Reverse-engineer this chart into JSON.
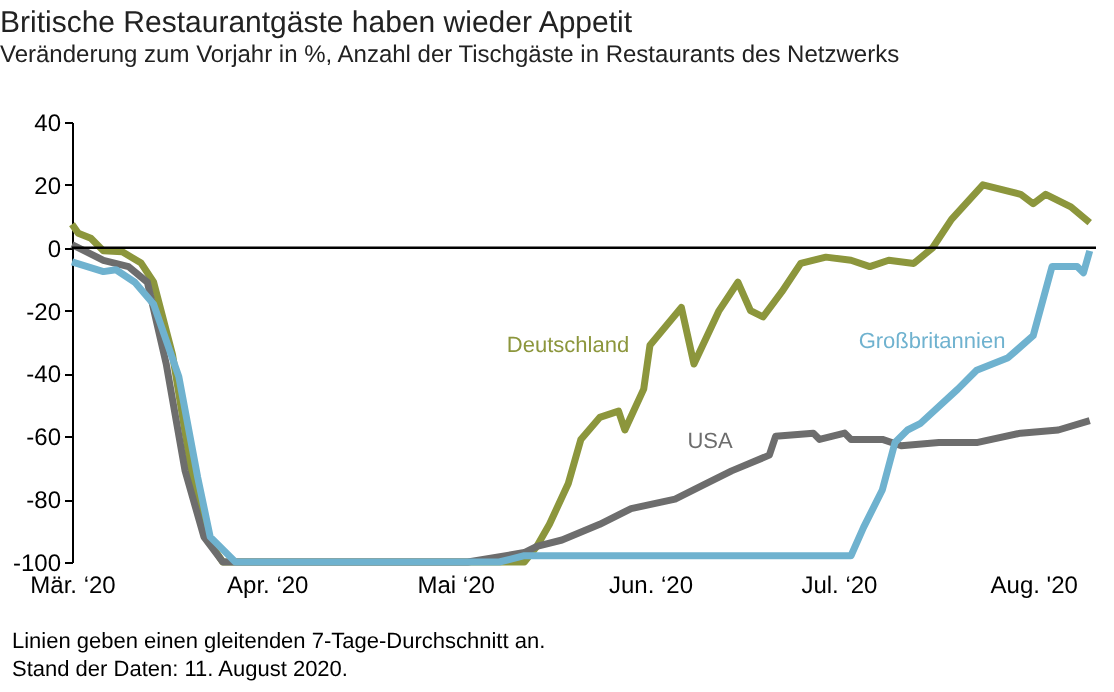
{
  "chart_data": {
    "type": "line",
    "title": "Britische Restaurantgäste haben wieder Appetit",
    "subtitle": "Veränderung zum Vorjahr in %, Anzahl der Tischgäste in Restaurants des Netzwerks",
    "annotations": [
      "Linien geben einen gleitenden 7-Tage-Durchschnitt an.",
      "Stand der Daten: 11. August 2020."
    ],
    "xlim": [
      "2020-03-01",
      "2020-08-11"
    ],
    "xticks": [
      {
        "value": "2020-03-01",
        "label": "Mär. ‘20"
      },
      {
        "value": "2020-04-01",
        "label": "Apr. ‘20"
      },
      {
        "value": "2020-05-01",
        "label": "Mai ‘20"
      },
      {
        "value": "2020-06-01",
        "label": "Jun. ‘20"
      },
      {
        "value": "2020-07-01",
        "label": "Jul. ‘20"
      },
      {
        "value": "2020-08-01",
        "label": "Aug. '20"
      }
    ],
    "ylim": [
      -100,
      40
    ],
    "yticks": [
      -100,
      -80,
      -60,
      -40,
      -20,
      0,
      20,
      40
    ],
    "grid": false,
    "legend": false,
    "marker": "none",
    "line_style": "solid",
    "ref_lines": [
      {
        "axis": "y",
        "value": 0,
        "color": "#000000"
      }
    ],
    "series": [
      {
        "name": "Deutschland",
        "color": "#8c963c",
        "x": [
          "2020-03-01",
          "2020-03-02",
          "2020-03-04",
          "2020-03-06",
          "2020-03-09",
          "2020-03-12",
          "2020-03-14",
          "2020-03-17",
          "2020-03-20",
          "2020-03-23",
          "2020-03-25",
          "2020-05-12",
          "2020-05-14",
          "2020-05-16",
          "2020-05-19",
          "2020-05-21",
          "2020-05-24",
          "2020-05-27",
          "2020-05-28",
          "2020-05-31",
          "2020-06-01",
          "2020-06-06",
          "2020-06-08",
          "2020-06-12",
          "2020-06-15",
          "2020-06-17",
          "2020-06-19",
          "2020-06-22",
          "2020-06-25",
          "2020-06-29",
          "2020-07-03",
          "2020-07-06",
          "2020-07-09",
          "2020-07-13",
          "2020-07-16",
          "2020-07-19",
          "2020-07-24",
          "2020-07-30",
          "2020-08-01",
          "2020-08-03",
          "2020-08-07",
          "2020-08-10"
        ],
        "values": [
          7.5,
          4.6,
          3,
          -1,
          -1.3,
          -4.9,
          -11,
          -34,
          -71,
          -94,
          -100,
          -100,
          -95,
          -88,
          -75,
          -61,
          -54,
          -52,
          -58,
          -45,
          -31,
          -19,
          -37,
          -20,
          -11,
          -20,
          -22,
          -14,
          -5,
          -3,
          -4,
          -6,
          -4,
          -5,
          0,
          9,
          20,
          17,
          14,
          17,
          13,
          8
        ]
      },
      {
        "name": "USA",
        "color": "#6d6d6d",
        "x": [
          "2020-03-01",
          "2020-03-06",
          "2020-03-10",
          "2020-03-13",
          "2020-03-16",
          "2020-03-19",
          "2020-03-22",
          "2020-03-25",
          "2020-05-03",
          "2020-05-12",
          "2020-05-14",
          "2020-05-18",
          "2020-05-24",
          "2020-05-29",
          "2020-06-05",
          "2020-06-10",
          "2020-06-14",
          "2020-06-20",
          "2020-06-21",
          "2020-06-27",
          "2020-06-28",
          "2020-07-02",
          "2020-07-03",
          "2020-07-08",
          "2020-07-11",
          "2020-07-17",
          "2020-07-23",
          "2020-07-30",
          "2020-08-05",
          "2020-08-10"
        ],
        "values": [
          1,
          -4,
          -6,
          -11,
          -37,
          -71,
          -92,
          -100,
          -100,
          -97,
          -95,
          -93,
          -88,
          -83,
          -80,
          -75,
          -71,
          -66,
          -60,
          -59,
          -61,
          -59,
          -61,
          -61,
          -63,
          -62,
          -62,
          -59,
          -58,
          -55
        ]
      },
      {
        "name": "Großbritannien",
        "color": "#6fb2cf",
        "x": [
          "2020-03-01",
          "2020-03-06",
          "2020-03-08",
          "2020-03-11",
          "2020-03-14",
          "2020-03-18",
          "2020-03-21",
          "2020-03-23",
          "2020-03-27",
          "2020-05-08",
          "2020-05-12",
          "2020-07-03",
          "2020-07-05",
          "2020-07-08",
          "2020-07-10",
          "2020-07-12",
          "2020-07-14",
          "2020-07-20",
          "2020-07-23",
          "2020-07-28",
          "2020-08-01",
          "2020-08-04",
          "2020-08-08",
          "2020-08-09",
          "2020-08-10"
        ],
        "values": [
          -4.5,
          -7.6,
          -7,
          -11,
          -18,
          -41,
          -73,
          -92,
          -100,
          -100,
          -98,
          -98,
          -89,
          -77,
          -62,
          -58,
          -56,
          -45,
          -39,
          -35,
          -28,
          -6,
          -6,
          -8,
          -1
        ]
      }
    ]
  }
}
